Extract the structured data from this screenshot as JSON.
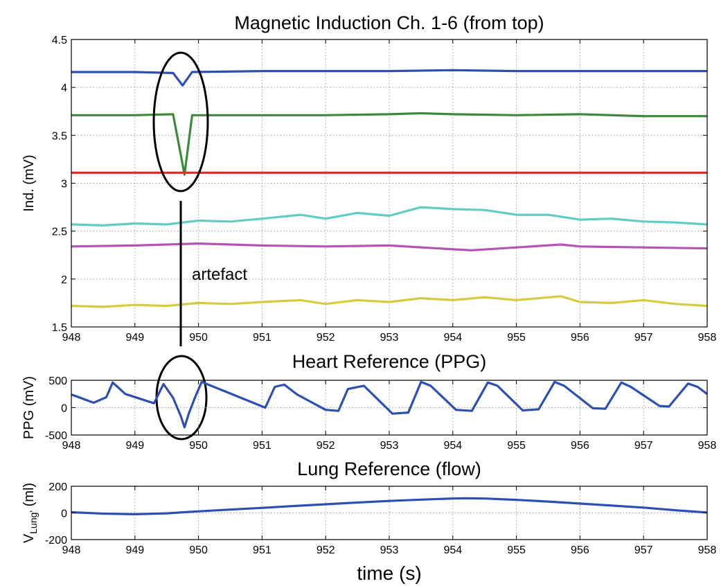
{
  "chart_data": [
    {
      "type": "line",
      "title": "Magnetic Induction Ch. 1-6 (from top)",
      "xlabel": "",
      "ylabel": "Ind. (mV)",
      "xlim": [
        948,
        958
      ],
      "ylim": [
        1.5,
        4.5
      ],
      "xticks": [
        948,
        949,
        950,
        951,
        952,
        953,
        954,
        955,
        956,
        957,
        958
      ],
      "yticks": [
        1.5,
        2,
        2.5,
        3,
        3.5,
        4,
        4.5
      ],
      "ytick_labels": [
        "1.5",
        "2",
        "2.5",
        "3",
        "3.5",
        "4",
        "4.5"
      ],
      "grid": true,
      "annotation": "artefact",
      "series": [
        {
          "color": "#2c4fb5",
          "x": [
            948,
            949,
            949.6,
            949.75,
            949.9,
            951,
            952,
            953,
            954,
            955,
            956,
            957,
            958
          ],
          "y": [
            4.16,
            4.16,
            4.15,
            4.02,
            4.16,
            4.17,
            4.17,
            4.17,
            4.18,
            4.17,
            4.17,
            4.17,
            4.17
          ]
        },
        {
          "color": "#3a8a3a",
          "x": [
            948,
            949,
            949.6,
            949.72,
            949.78,
            949.9,
            951,
            952,
            953,
            953.5,
            954,
            955,
            956,
            957,
            958
          ],
          "y": [
            3.71,
            3.71,
            3.72,
            3.3,
            3.09,
            3.71,
            3.71,
            3.71,
            3.72,
            3.73,
            3.72,
            3.71,
            3.72,
            3.7,
            3.7
          ]
        },
        {
          "color": "#e02a2a",
          "x": [
            948,
            950,
            952,
            954,
            956,
            958
          ],
          "y": [
            3.11,
            3.11,
            3.11,
            3.11,
            3.11,
            3.11
          ]
        },
        {
          "color": "#5fcdc4",
          "x": [
            948,
            948.5,
            949,
            949.5,
            950,
            950.5,
            951,
            951.6,
            952,
            952.5,
            953,
            953.5,
            954,
            954.5,
            955,
            955.5,
            956,
            956.5,
            957,
            957.5,
            958
          ],
          "y": [
            2.57,
            2.56,
            2.58,
            2.57,
            2.61,
            2.6,
            2.63,
            2.67,
            2.63,
            2.69,
            2.66,
            2.75,
            2.73,
            2.72,
            2.67,
            2.67,
            2.62,
            2.63,
            2.6,
            2.59,
            2.57
          ]
        },
        {
          "color": "#b552b5",
          "x": [
            948,
            949,
            950,
            951,
            952,
            953,
            954,
            954.3,
            955,
            955.7,
            956,
            957,
            958
          ],
          "y": [
            2.34,
            2.35,
            2.37,
            2.35,
            2.34,
            2.35,
            2.31,
            2.3,
            2.33,
            2.36,
            2.34,
            2.33,
            2.32
          ]
        },
        {
          "color": "#d4cc3c",
          "x": [
            948,
            948.5,
            949,
            949.5,
            950,
            950.5,
            951,
            951.6,
            952,
            952.5,
            953,
            953.5,
            954,
            954.5,
            955,
            955.7,
            956,
            956.5,
            957,
            957.5,
            958
          ],
          "y": [
            1.72,
            1.71,
            1.73,
            1.72,
            1.75,
            1.74,
            1.76,
            1.78,
            1.74,
            1.78,
            1.76,
            1.8,
            1.78,
            1.81,
            1.78,
            1.82,
            1.76,
            1.75,
            1.78,
            1.74,
            1.72
          ]
        }
      ]
    },
    {
      "type": "line",
      "title": "Heart Reference (PPG)",
      "xlabel": "",
      "ylabel": "PPG (mV)",
      "xlim": [
        948,
        958
      ],
      "ylim": [
        -500,
        500
      ],
      "xticks": [
        948,
        949,
        950,
        951,
        952,
        953,
        954,
        955,
        956,
        957,
        958
      ],
      "yticks": [
        -500,
        0,
        500
      ],
      "ytick_labels": [
        "-500",
        "0",
        "500"
      ],
      "grid": true,
      "series": [
        {
          "color": "#2c4fb5",
          "x": [
            948,
            948.35,
            948.55,
            948.65,
            948.85,
            949.3,
            949.45,
            949.6,
            949.72,
            949.78,
            949.85,
            949.95,
            950.05,
            951.05,
            951.2,
            951.35,
            951.55,
            952.0,
            952.2,
            952.35,
            952.6,
            953.05,
            953.3,
            953.5,
            953.65,
            954.05,
            954.3,
            954.55,
            954.7,
            955.1,
            955.35,
            955.6,
            955.75,
            956.2,
            956.4,
            956.65,
            956.8,
            957.25,
            957.4,
            957.7,
            957.85,
            958
          ],
          "y": [
            240,
            90,
            190,
            460,
            250,
            80,
            430,
            180,
            -150,
            -360,
            -100,
            200,
            470,
            0,
            380,
            420,
            240,
            -40,
            -60,
            340,
            400,
            -110,
            -90,
            470,
            400,
            -40,
            -60,
            460,
            400,
            -50,
            -30,
            470,
            400,
            -10,
            -20,
            460,
            380,
            30,
            20,
            440,
            380,
            250
          ]
        }
      ]
    },
    {
      "type": "line",
      "title": "Lung Reference (flow)",
      "xlabel": "time (s)",
      "ylabel": "V_Lung' (ml)",
      "xlim": [
        948,
        958
      ],
      "ylim": [
        -200,
        200
      ],
      "xticks": [
        948,
        949,
        950,
        951,
        952,
        953,
        954,
        955,
        956,
        957,
        958
      ],
      "yticks": [
        -200,
        0,
        200
      ],
      "ytick_labels": [
        "-200",
        "0",
        "200"
      ],
      "grid": true,
      "series": [
        {
          "color": "#2c4fb5",
          "x": [
            948,
            948.5,
            949,
            949.5,
            950,
            950.5,
            951,
            951.5,
            952,
            952.5,
            953,
            953.5,
            954,
            954.2,
            954.5,
            955,
            955.5,
            956,
            956.5,
            957,
            957.5,
            958
          ],
          "y": [
            5,
            -5,
            -10,
            -3,
            12,
            25,
            38,
            52,
            65,
            78,
            90,
            100,
            108,
            110,
            108,
            98,
            85,
            70,
            55,
            40,
            20,
            3
          ]
        }
      ]
    }
  ]
}
